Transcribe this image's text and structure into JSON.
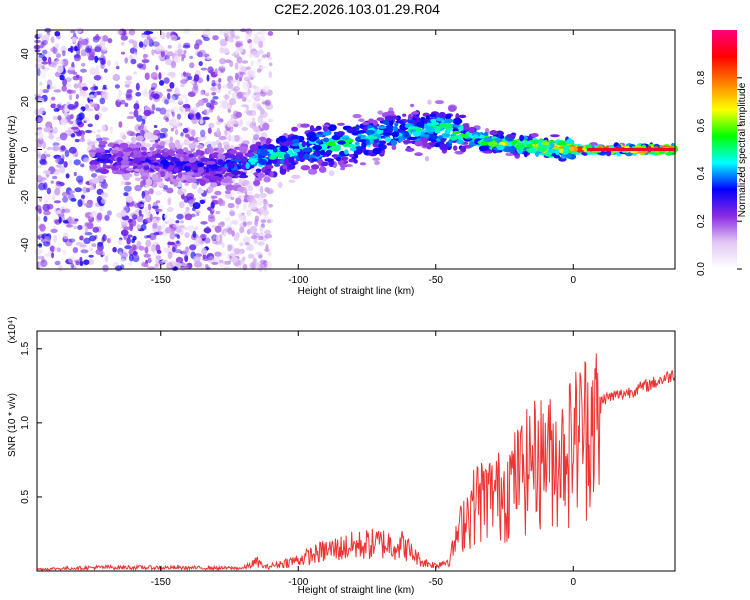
{
  "title": "C2E2.2026.103.01.29.R04",
  "chart_data": [
    {
      "type": "heatmap",
      "name": "spectrogram",
      "xlabel": "Height of straight line (km)",
      "ylabel": "Frequency (Hz)",
      "xlim": [
        -195,
        37
      ],
      "ylim": [
        -50,
        50
      ],
      "x_ticks": [
        -150,
        -100,
        -50,
        0
      ],
      "y_ticks": [
        -40,
        -20,
        0,
        20,
        40
      ],
      "colorbar": {
        "label": "Normalized spectral amplitude",
        "range": [
          0,
          1
        ],
        "ticks": [
          "0.0",
          "0.2",
          "0.4",
          "0.6",
          "0.8"
        ],
        "colors": [
          "#ffffff",
          "#e2c8f5",
          "#8a2be2",
          "#0000ff",
          "#00ffff",
          "#00ff00",
          "#ffff00",
          "#ff8000",
          "#ff0000",
          "#ff0080"
        ]
      },
      "ridge": {
        "description_free": true,
        "x": [
          -175,
          -170,
          -165,
          -130,
          -120,
          -110,
          -100,
          -90,
          -80,
          -70,
          -60,
          -50,
          -45,
          -40,
          -30,
          -20,
          -10,
          0,
          10,
          20,
          37
        ],
        "freq": [
          -5,
          -3,
          -4,
          -8,
          -6,
          -3,
          0,
          2,
          3,
          6,
          8,
          9,
          8,
          6,
          3,
          2,
          1,
          0,
          0,
          0,
          0
        ],
        "peak_amplitude": [
          0.3,
          0.35,
          0.3,
          0.35,
          0.45,
          0.5,
          0.5,
          0.55,
          0.55,
          0.5,
          0.5,
          0.55,
          0.55,
          0.6,
          0.65,
          0.7,
          0.8,
          0.85,
          0.9,
          0.95,
          1.0
        ]
      }
    },
    {
      "type": "line",
      "name": "snr",
      "xlabel": "Height of straight line (km)",
      "ylabel": "SNR (10 * v/v)",
      "scale_label": "(x10⁴)",
      "xlim": [
        -195,
        37
      ],
      "ylim": [
        0,
        1.62
      ],
      "x_ticks": [
        -150,
        -100,
        -50,
        0
      ],
      "y_ticks": [
        "0.5",
        "1.0",
        "1.5"
      ],
      "series": [
        {
          "name": "SNR",
          "color": "#ee3333",
          "envelope_x": [
            -195,
            -170,
            -120,
            -115,
            -112,
            -100,
            -90,
            -80,
            -70,
            -62,
            -55,
            -50,
            -45,
            -40,
            -35,
            -30,
            -25,
            -20,
            -15,
            -10,
            -5,
            0,
            5,
            8,
            10,
            20,
            30,
            37
          ],
          "envelope_y": [
            0.02,
            0.04,
            0.03,
            0.1,
            0.04,
            0.12,
            0.22,
            0.27,
            0.3,
            0.28,
            0.1,
            0.06,
            0.12,
            0.5,
            0.72,
            0.75,
            0.8,
            0.95,
            1.1,
            1.15,
            1.1,
            1.3,
            1.45,
            1.55,
            1.2,
            1.25,
            1.32,
            1.38
          ]
        }
      ]
    }
  ]
}
